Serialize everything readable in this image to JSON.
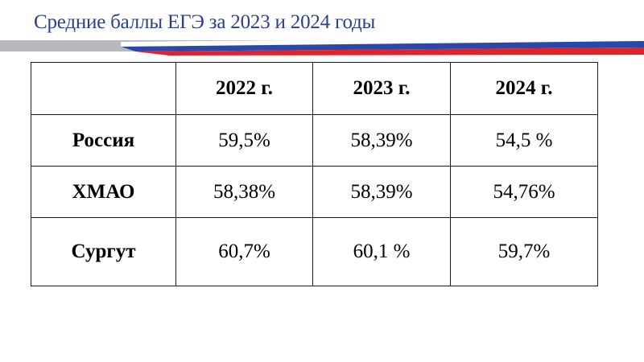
{
  "title": "Средние баллы ЕГЭ за 2023 и 2024 годы",
  "colors": {
    "title": "#2b3f8f",
    "stripe_gray": "#b7b9bc",
    "stripe_blue": "#2b48a8",
    "stripe_red": "#e0232b"
  },
  "table": {
    "columns": [
      "",
      "2022 г.",
      "2023 г.",
      "2024 г."
    ],
    "rows": [
      {
        "label": "Россия",
        "values": [
          "59,5%",
          "58,39%",
          "54,5 %"
        ]
      },
      {
        "label": "ХМАО",
        "values": [
          "58,38%",
          "58,39%",
          "54,76%"
        ]
      },
      {
        "label": "Сургут",
        "values": [
          "60,7%",
          "60,1 %",
          "59,7%"
        ]
      }
    ]
  }
}
